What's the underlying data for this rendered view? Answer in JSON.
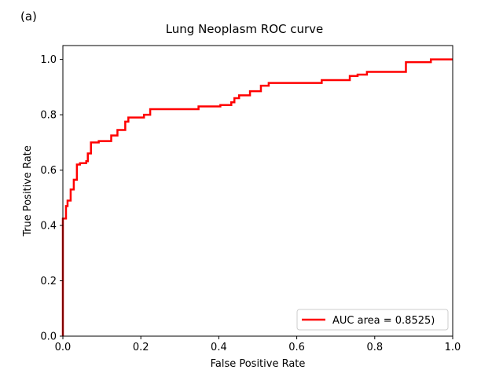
{
  "panel_label": "(a)",
  "chart_data": {
    "type": "line",
    "title": "Lung Neoplasm ROC curve",
    "xlabel": "False Positive Rate",
    "ylabel": "True Positive Rate",
    "xlim": [
      0.0,
      1.0
    ],
    "ylim": [
      0.0,
      1.05
    ],
    "xticks": [
      0.0,
      0.2,
      0.4,
      0.6,
      0.8,
      1.0
    ],
    "xtick_labels": [
      "0.0",
      "0.2",
      "0.4",
      "0.6",
      "0.8",
      "1.0"
    ],
    "yticks": [
      0.0,
      0.2,
      0.4,
      0.6,
      0.8,
      1.0
    ],
    "ytick_labels": [
      "0.0",
      "0.2",
      "0.4",
      "0.6",
      "0.8",
      "1.0"
    ],
    "grid": false,
    "legend_position": "lower-right",
    "series": [
      {
        "name": "AUC area = 0.8525)",
        "color": "#ff0000",
        "step": true,
        "x": [
          0.0,
          0.0,
          0.008,
          0.008,
          0.012,
          0.012,
          0.02,
          0.02,
          0.028,
          0.028,
          0.036,
          0.036,
          0.044,
          0.044,
          0.06,
          0.06,
          0.064,
          0.064,
          0.072,
          0.072,
          0.092,
          0.092,
          0.124,
          0.124,
          0.14,
          0.14,
          0.16,
          0.16,
          0.168,
          0.168,
          0.208,
          0.208,
          0.224,
          0.224,
          0.236,
          0.236,
          0.348,
          0.348,
          0.404,
          0.404,
          0.432,
          0.432,
          0.44,
          0.44,
          0.452,
          0.452,
          0.48,
          0.48,
          0.508,
          0.508,
          0.528,
          0.528,
          0.664,
          0.664,
          0.736,
          0.736,
          0.756,
          0.756,
          0.78,
          0.78,
          0.88,
          0.88,
          0.944,
          0.944,
          1.0
        ],
        "y": [
          0.0,
          0.425,
          0.425,
          0.47,
          0.47,
          0.49,
          0.49,
          0.53,
          0.53,
          0.565,
          0.565,
          0.62,
          0.62,
          0.625,
          0.625,
          0.632,
          0.632,
          0.66,
          0.66,
          0.7,
          0.7,
          0.705,
          0.705,
          0.725,
          0.725,
          0.745,
          0.745,
          0.775,
          0.775,
          0.79,
          0.79,
          0.8,
          0.8,
          0.82,
          0.82,
          0.82,
          0.82,
          0.83,
          0.83,
          0.835,
          0.835,
          0.845,
          0.845,
          0.86,
          0.86,
          0.87,
          0.87,
          0.885,
          0.885,
          0.905,
          0.905,
          0.915,
          0.915,
          0.925,
          0.925,
          0.94,
          0.94,
          0.945,
          0.945,
          0.955,
          0.955,
          0.99,
          0.99,
          1.0,
          1.0
        ]
      }
    ]
  }
}
